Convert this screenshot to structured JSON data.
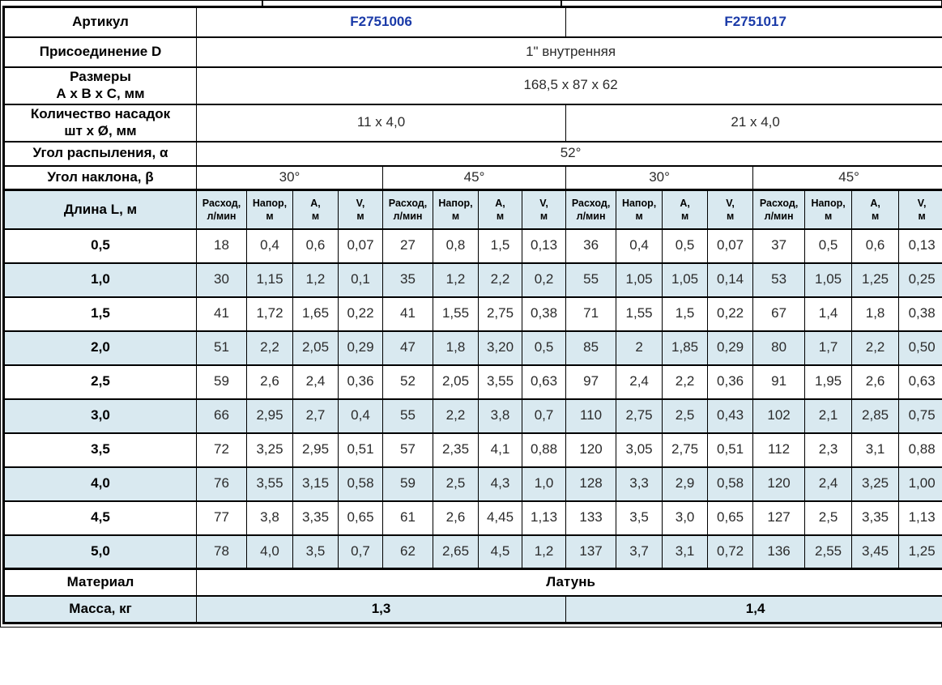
{
  "colors": {
    "article_blue": "#1a3aa8",
    "row_shade_blue": "#d9e9f0",
    "border_black": "#000000",
    "text_dark": "#2b2b2b"
  },
  "table": {
    "spec_rows": [
      {
        "label": "Артикул",
        "cells": [
          {
            "text": "F2751006",
            "span": 8,
            "accent": true
          },
          {
            "text": "F2751017",
            "span": 8,
            "accent": true
          }
        ]
      },
      {
        "label": "Присоединение D",
        "cells": [
          {
            "text": "1\" внутренняя",
            "span": 16
          }
        ]
      },
      {
        "label": "Размеры\nА х В х С, мм",
        "cells": [
          {
            "text": "168,5 x 87 x 62",
            "span": 16
          }
        ]
      },
      {
        "label": "Количество насадок\nшт х Ø, мм",
        "cells": [
          {
            "text": "11 x 4,0",
            "span": 8
          },
          {
            "text": "21 x 4,0",
            "span": 8
          }
        ]
      },
      {
        "label": "Угол распыления, α",
        "cells": [
          {
            "text": "52°",
            "span": 16
          }
        ]
      },
      {
        "label": "Угол наклона, β",
        "cells": [
          {
            "text": "30°",
            "span": 4
          },
          {
            "text": "45°",
            "span": 4
          },
          {
            "text": "30°",
            "span": 4
          },
          {
            "text": "45°",
            "span": 4
          }
        ]
      }
    ],
    "header_row": {
      "label": "Длина L, м",
      "sub_columns": [
        "Расход,\nл/мин",
        "Напор,\nм",
        "А,\nм",
        "V,\nм"
      ],
      "sub_groups": 4
    },
    "data_rows": [
      {
        "label": "0,5",
        "values": [
          "18",
          "0,4",
          "0,6",
          "0,07",
          "27",
          "0,8",
          "1,5",
          "0,13",
          "36",
          "0,4",
          "0,5",
          "0,07",
          "37",
          "0,5",
          "0,6",
          "0,13"
        ]
      },
      {
        "label": "1,0",
        "values": [
          "30",
          "1,15",
          "1,2",
          "0,1",
          "35",
          "1,2",
          "2,2",
          "0,2",
          "55",
          "1,05",
          "1,05",
          "0,14",
          "53",
          "1,05",
          "1,25",
          "0,25"
        ]
      },
      {
        "label": "1,5",
        "values": [
          "41",
          "1,72",
          "1,65",
          "0,22",
          "41",
          "1,55",
          "2,75",
          "0,38",
          "71",
          "1,55",
          "1,5",
          "0,22",
          "67",
          "1,4",
          "1,8",
          "0,38"
        ]
      },
      {
        "label": "2,0",
        "values": [
          "51",
          "2,2",
          "2,05",
          "0,29",
          "47",
          "1,8",
          "3,20",
          "0,5",
          "85",
          "2",
          "1,85",
          "0,29",
          "80",
          "1,7",
          "2,2",
          "0,50"
        ]
      },
      {
        "label": "2,5",
        "values": [
          "59",
          "2,6",
          "2,4",
          "0,36",
          "52",
          "2,05",
          "3,55",
          "0,63",
          "97",
          "2,4",
          "2,2",
          "0,36",
          "91",
          "1,95",
          "2,6",
          "0,63"
        ]
      },
      {
        "label": "3,0",
        "values": [
          "66",
          "2,95",
          "2,7",
          "0,4",
          "55",
          "2,2",
          "3,8",
          "0,7",
          "110",
          "2,75",
          "2,5",
          "0,43",
          "102",
          "2,1",
          "2,85",
          "0,75"
        ]
      },
      {
        "label": "3,5",
        "values": [
          "72",
          "3,25",
          "2,95",
          "0,51",
          "57",
          "2,35",
          "4,1",
          "0,88",
          "120",
          "3,05",
          "2,75",
          "0,51",
          "112",
          "2,3",
          "3,1",
          "0,88"
        ]
      },
      {
        "label": "4,0",
        "values": [
          "76",
          "3,55",
          "3,15",
          "0,58",
          "59",
          "2,5",
          "4,3",
          "1,0",
          "128",
          "3,3",
          "2,9",
          "0,58",
          "120",
          "2,4",
          "3,25",
          "1,00"
        ]
      },
      {
        "label": "4,5",
        "values": [
          "77",
          "3,8",
          "3,35",
          "0,65",
          "61",
          "2,6",
          "4,45",
          "1,13",
          "133",
          "3,5",
          "3,0",
          "0,65",
          "127",
          "2,5",
          "3,35",
          "1,13"
        ]
      },
      {
        "label": "5,0",
        "values": [
          "78",
          "4,0",
          "3,5",
          "0,7",
          "62",
          "2,65",
          "4,5",
          "1,2",
          "137",
          "3,7",
          "3,1",
          "0,72",
          "136",
          "2,55",
          "3,45",
          "1,25"
        ]
      }
    ],
    "footer_rows": [
      {
        "label": "Материал",
        "cells": [
          {
            "text": "Латунь",
            "span": 16
          }
        ],
        "bold": true,
        "shade": false
      },
      {
        "label": "Масса, кг",
        "cells": [
          {
            "text": "1,3",
            "span": 8
          },
          {
            "text": "1,4",
            "span": 8
          }
        ],
        "bold": true,
        "shade": true
      }
    ]
  }
}
